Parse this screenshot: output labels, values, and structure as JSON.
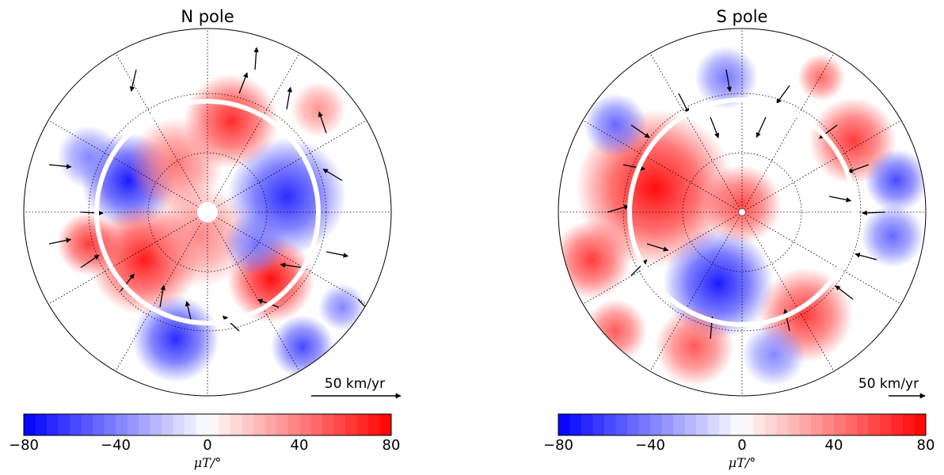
{
  "chart_data": [
    {
      "type": "heatmap",
      "title": "N pole",
      "colorbar": {
        "range": [
          -80,
          80
        ],
        "ticks": [
          "−80",
          "−40",
          "0",
          "40",
          "80"
        ],
        "label": "μT/°",
        "colors": [
          "#0000ff",
          "#ffffff",
          "#ff0000"
        ],
        "levels": 32
      },
      "vector_scale": {
        "label": "50 km/yr",
        "value": 50
      },
      "annotations": [
        "white circle: tangent cylinder boundary"
      ],
      "grid": true
    },
    {
      "type": "heatmap",
      "title": "S pole",
      "colorbar": {
        "range": [
          -80,
          80
        ],
        "ticks": [
          "−80",
          "−40",
          "0",
          "40",
          "80"
        ],
        "label": "μT/°",
        "colors": [
          "#0000ff",
          "#ffffff",
          "#ff0000"
        ],
        "levels": 32
      },
      "vector_scale": {
        "label": "50 km/yr",
        "value": 50
      },
      "annotations": [
        "white circle: tangent cylinder boundary"
      ],
      "grid": true
    }
  ]
}
